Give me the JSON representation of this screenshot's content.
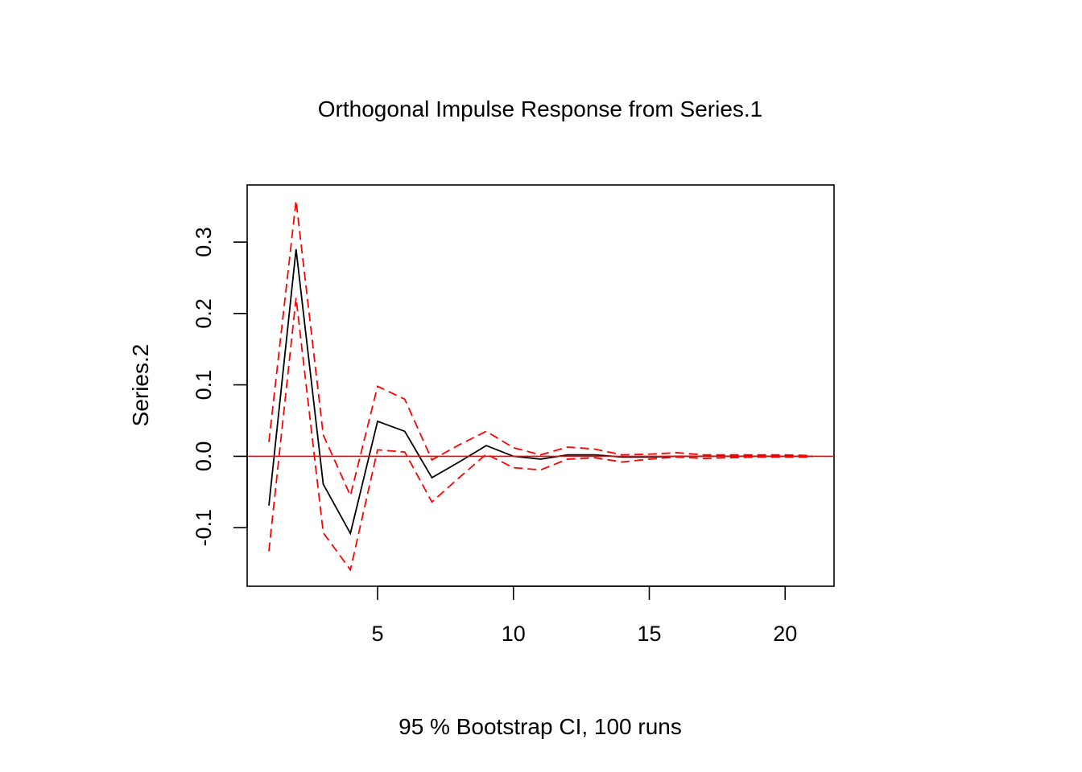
{
  "chart_data": {
    "type": "line",
    "title": "Orthogonal Impulse Response from Series.1",
    "xlabel": "95 % Bootstrap CI,  100 runs",
    "ylabel": "Series.2",
    "xlim": [
      0.2,
      21.8
    ],
    "ylim": [
      -0.182,
      0.38
    ],
    "x_ticks": [
      5,
      10,
      15,
      20
    ],
    "x_tick_labels": [
      "5",
      "10",
      "15",
      "20"
    ],
    "y_ticks": [
      -0.1,
      0.0,
      0.1,
      0.2,
      0.3
    ],
    "y_tick_labels": [
      "-0.1",
      "0.0",
      "0.1",
      "0.2",
      "0.3"
    ],
    "grid": false,
    "legend": "none",
    "x": [
      1,
      2,
      3,
      4,
      5,
      6,
      7,
      8,
      9,
      10,
      11,
      12,
      13,
      14,
      15,
      16,
      17,
      18,
      19,
      20,
      21
    ],
    "series": [
      {
        "role": "response",
        "color": "#000000",
        "dash": "solid",
        "values": [
          -0.069,
          0.29,
          -0.039,
          -0.108,
          0.049,
          0.035,
          -0.03,
          -0.008,
          0.015,
          0.0,
          -0.004,
          0.002,
          0.002,
          -0.001,
          -0.001,
          0.0,
          0.0,
          0.0,
          0.0,
          0.0,
          0.0
        ]
      },
      {
        "role": "upper",
        "color": "#ff0000",
        "dash": "dashed",
        "values": [
          0.02,
          0.358,
          0.03,
          -0.055,
          0.098,
          0.08,
          -0.005,
          0.016,
          0.035,
          0.012,
          0.002,
          0.013,
          0.01,
          0.002,
          0.003,
          0.005,
          0.002,
          0.002,
          0.002,
          0.002,
          0.001
        ]
      },
      {
        "role": "lower",
        "color": "#ff0000",
        "dash": "dashed",
        "values": [
          -0.133,
          0.222,
          -0.107,
          -0.159,
          0.009,
          0.006,
          -0.064,
          -0.03,
          0.003,
          -0.016,
          -0.019,
          -0.004,
          -0.002,
          -0.008,
          -0.004,
          -0.001,
          -0.003,
          -0.002,
          -0.001,
          -0.001,
          -0.001
        ]
      }
    ],
    "reference_line": {
      "y": 0,
      "color": "#ff0000"
    }
  }
}
